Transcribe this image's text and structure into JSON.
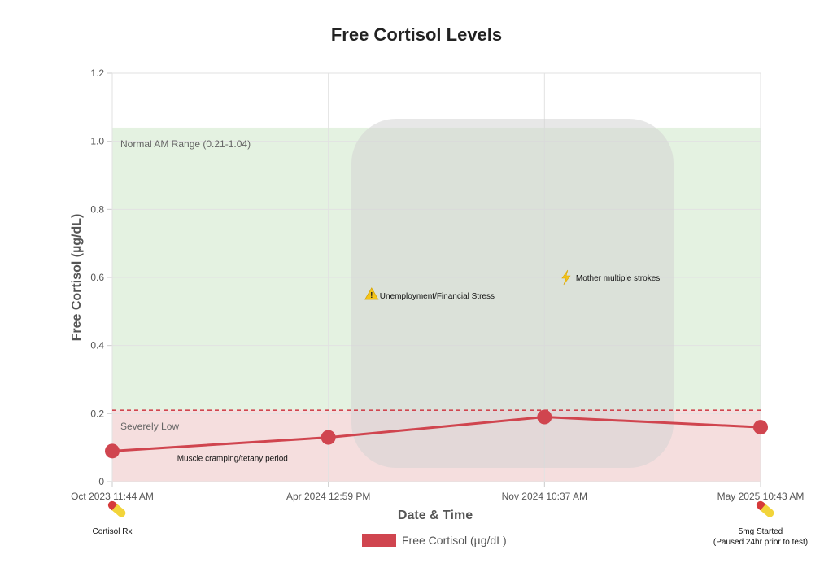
{
  "chart_data": {
    "type": "line",
    "title": "Free Cortisol Levels",
    "xlabel": "Date & Time",
    "ylabel": "Free Cortisol (µg/dL)",
    "ylim": [
      0,
      1.2
    ],
    "yticks": [
      "0",
      "0.2",
      "0.4",
      "0.6",
      "0.8",
      "1.0",
      "1.2"
    ],
    "yticks_values": [
      0,
      0.2,
      0.4,
      0.6,
      0.8,
      1.0,
      1.2
    ],
    "categories": [
      "Oct 2023 11:44 AM",
      "Apr 2024 12:59 PM",
      "Nov 2024 10:37 AM",
      "May 2025 10:43 AM"
    ],
    "series": [
      {
        "name": "Free Cortisol (µg/dL)",
        "values": [
          0.09,
          0.13,
          0.19,
          0.16
        ],
        "color": "#d0454f"
      }
    ],
    "grid": true,
    "legend_placement": "bottom-center",
    "bands": [
      {
        "label": "Normal AM Range (0.21-1.04)",
        "from": 0.21,
        "to": 1.04,
        "color": "#e4f2e1"
      },
      {
        "label": "Severely Low",
        "from": 0,
        "to": 0.21,
        "color": "#f5dede"
      }
    ],
    "threshold_line": {
      "value": 0.21,
      "color": "#d0454f",
      "style": "dashed"
    },
    "annotations": [
      {
        "text": "Muscle cramping/tetany period",
        "x": 0.3,
        "y": 0.07,
        "icon": "none"
      },
      {
        "text": "Unemployment/Financial Stress",
        "x": 1.2,
        "y": 0.55,
        "icon": "warning-icon"
      },
      {
        "text": "Mother multiple strokes",
        "x": 2.1,
        "y": 0.6,
        "icon": "lightning-icon"
      }
    ],
    "medication_markers": [
      {
        "category_index": 0,
        "icon": "pill-icon",
        "lines": [
          "Cortisol Rx"
        ]
      },
      {
        "category_index": 3,
        "icon": "pill-icon",
        "lines": [
          "5mg Started",
          "(Paused 24hr prior to test)"
        ]
      }
    ],
    "overlay_color": "#d3d3d3"
  }
}
